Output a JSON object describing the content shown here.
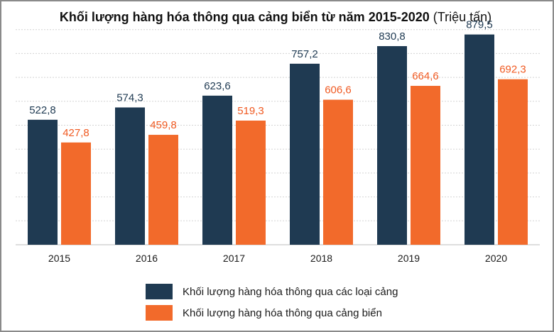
{
  "chart_data": {
    "type": "bar",
    "title": "Khối lượng hàng hóa thông qua cảng biển từ năm 2015-2020",
    "unit": "(Triệu tấn)",
    "categories": [
      "2015",
      "2016",
      "2017",
      "2018",
      "2019",
      "2020"
    ],
    "series": [
      {
        "name": "Khối lượng hàng hóa thông qua các loại cảng",
        "values": [
          522.8,
          574.3,
          623.6,
          757.2,
          830.8,
          879.5
        ],
        "labels": [
          "522,8",
          "574,3",
          "623,6",
          "757,2",
          "830,8",
          "879,5"
        ],
        "color": "#1f3a52",
        "label_color": "#1f3a52"
      },
      {
        "name": "Khối lượng hàng hóa thông qua cảng biển",
        "values": [
          427.8,
          459.8,
          519.3,
          606.6,
          664.6,
          692.3
        ],
        "labels": [
          "427,8",
          "459,8",
          "519,3",
          "606,6",
          "664,6",
          "692,3"
        ],
        "color": "#f26a2b",
        "label_color": "#f05a22"
      }
    ],
    "ylim": [
      0,
      1000
    ],
    "grid": true,
    "legend_position": "bottom"
  }
}
